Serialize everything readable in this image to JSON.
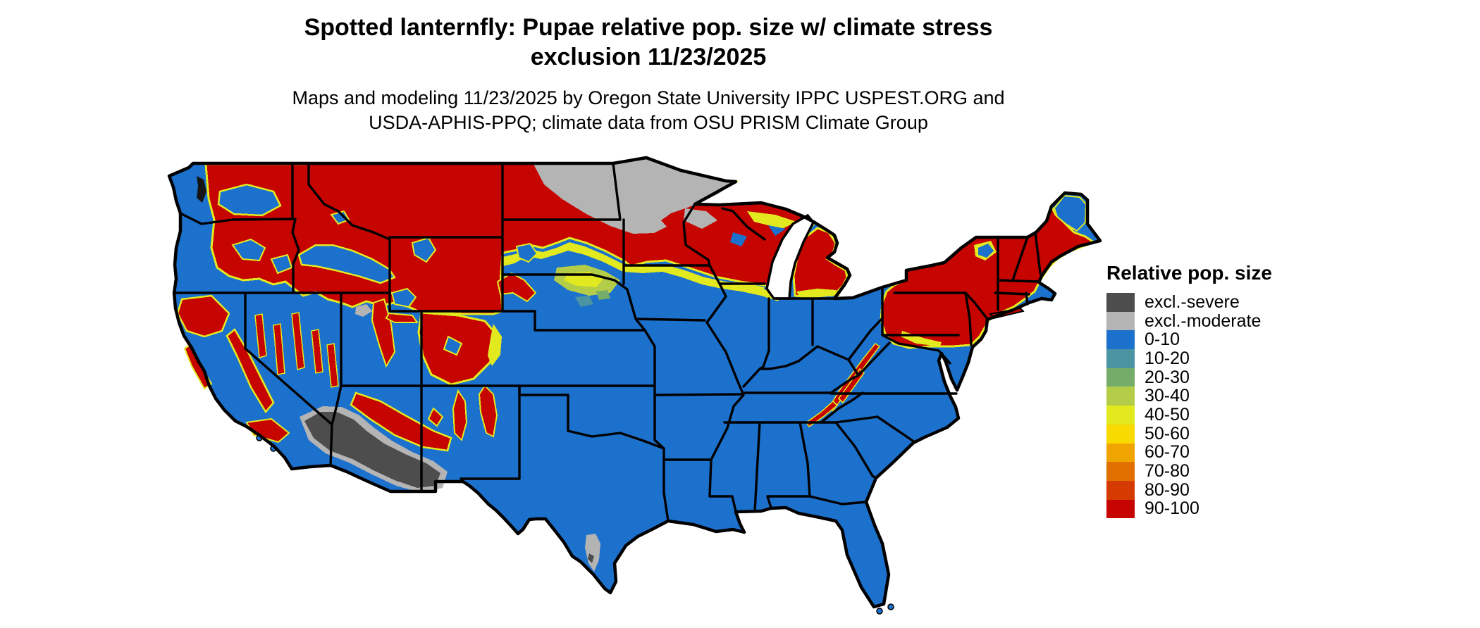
{
  "title": {
    "line1": "Spotted lanternfly: Pupae relative pop. size w/ climate stress",
    "line2": "exclusion 11/23/2025"
  },
  "subtitle": {
    "line1": "Maps and modeling 11/23/2025 by Oregon State University IPPC USPEST.ORG and",
    "line2": "USDA-APHIS-PPQ; climate data from OSU PRISM Climate Group"
  },
  "legend": {
    "title": "Relative pop. size",
    "items": [
      {
        "label": "excl.-severe",
        "color": "excl_severe"
      },
      {
        "label": "excl.-moderate",
        "color": "excl_moderate"
      },
      {
        "label": "0-10",
        "color": "c0"
      },
      {
        "label": "10-20",
        "color": "c10"
      },
      {
        "label": "20-30",
        "color": "c20"
      },
      {
        "label": "30-40",
        "color": "c30"
      },
      {
        "label": "40-50",
        "color": "c40"
      },
      {
        "label": "50-60",
        "color": "c50"
      },
      {
        "label": "60-70",
        "color": "c60"
      },
      {
        "label": "70-80",
        "color": "c70"
      },
      {
        "label": "80-90",
        "color": "c80"
      },
      {
        "label": "90-100",
        "color": "c90"
      }
    ]
  },
  "palette": {
    "excl_severe": "#4d4d4d",
    "excl_moderate": "#b4b4b4",
    "c0": "#1c71cd",
    "c10": "#4b95a2",
    "c20": "#75ac6a",
    "c30": "#b3cd49",
    "c40": "#e3e91f",
    "c50": "#f8d900",
    "c60": "#f0a400",
    "c70": "#e17000",
    "c80": "#d53b00",
    "c90": "#c60400",
    "border": "#000000",
    "water": "#ffffff",
    "sound": "#141414"
  }
}
